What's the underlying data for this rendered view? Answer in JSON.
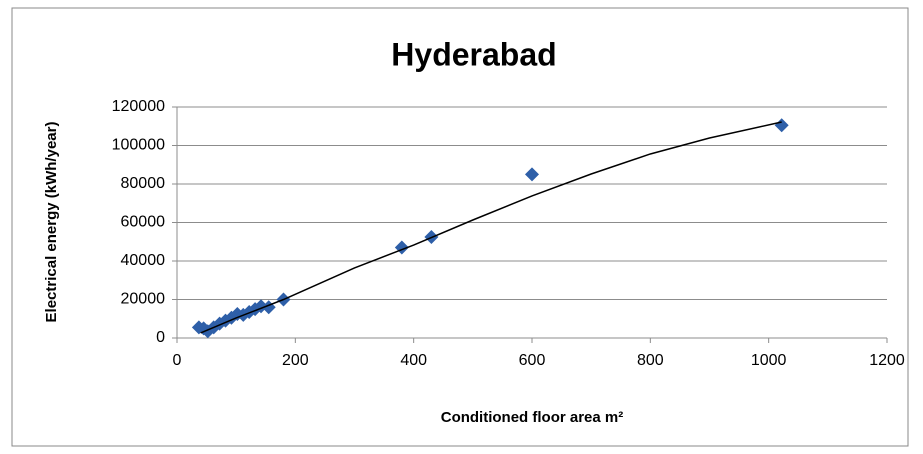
{
  "chart_data": {
    "type": "scatter",
    "title": "Hyderabad",
    "x_label": "Conditioned floor area m²",
    "y_label": "Electrical energy (kWh/year)",
    "color": "#2e5fa8",
    "x": [
      37,
      45,
      52,
      62,
      72,
      82,
      92,
      102,
      112,
      122,
      132,
      142,
      155,
      180,
      380,
      430,
      600,
      1022
    ],
    "values": [
      5500,
      5000,
      3500,
      5500,
      7500,
      9000,
      10500,
      12500,
      12000,
      13500,
      15000,
      16500,
      16000,
      20000,
      47000,
      52500,
      85000,
      110500
    ],
    "trendline": {
      "x": [
        40,
        100,
        180,
        300,
        400,
        500,
        600,
        700,
        800,
        900,
        1022
      ],
      "y": [
        2600,
        10400,
        20000,
        36400,
        48300,
        61300,
        73800,
        85200,
        95600,
        103900,
        112200
      ]
    },
    "xlim": [
      0,
      1200
    ],
    "xticks": [
      0,
      200,
      400,
      600,
      800,
      1000,
      1200
    ],
    "ylim": [
      0,
      120000
    ],
    "yticks": [
      0,
      20000,
      40000,
      60000,
      80000,
      100000,
      120000
    ],
    "grid": true
  }
}
